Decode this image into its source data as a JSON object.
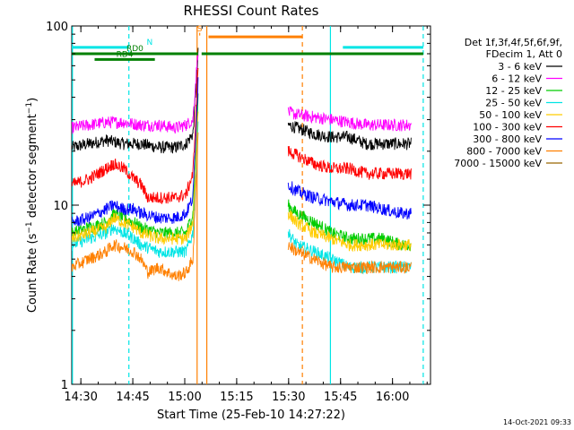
{
  "chart_data": {
    "type": "line",
    "title": "RHESSI Count Rates",
    "xlabel": "Start Time (25-Feb-10 14:27:22)",
    "ylabel": "Count Rate (s⁻¹ detector segment⁻¹)",
    "ylabel_main": "Count Rate (s",
    "ylabel_sup1": "−1",
    "ylabel_mid": " detector segment",
    "ylabel_sup2": "−1",
    "ylabel_end": ")",
    "x_axis_unit": "minutes after 14:27:22",
    "xlim_minutes": [
      0,
      103.6
    ],
    "ylim": [
      1,
      100
    ],
    "y_scale": "log",
    "x_ticks": [
      {
        "label": "14:30",
        "min": 2.63
      },
      {
        "label": "14:45",
        "min": 17.63
      },
      {
        "label": "15:00",
        "min": 32.63
      },
      {
        "label": "15:15",
        "min": 47.63
      },
      {
        "label": "15:30",
        "min": 62.63
      },
      {
        "label": "15:45",
        "min": 77.63
      },
      {
        "label": "16:00",
        "min": 92.63
      }
    ],
    "y_ticks": [
      {
        "label": "1",
        "value": 1
      },
      {
        "label": "10",
        "value": 10
      },
      {
        "label": "100",
        "value": 100
      }
    ],
    "legend_header": [
      "Det 1f,3f,4f,5f,6f,9f,",
      "FDecim 1, Att 0"
    ],
    "legend_placement": "right",
    "series": [
      {
        "name": "3 - 6 keV",
        "color": "#000000",
        "values": [
          [
            0,
            21
          ],
          [
            5,
            22
          ],
          [
            10,
            23
          ],
          [
            15,
            22
          ],
          [
            20,
            22
          ],
          [
            25,
            21
          ],
          [
            30,
            21
          ],
          [
            33,
            22
          ],
          [
            35,
            25
          ],
          [
            36.5,
            70
          ],
          [
            37.1,
            null
          ],
          [
            62,
            null
          ],
          [
            62.5,
            28
          ],
          [
            65,
            27
          ],
          [
            70,
            25
          ],
          [
            75,
            24
          ],
          [
            80,
            24
          ],
          [
            85,
            22
          ],
          [
            90,
            22
          ],
          [
            95,
            22
          ],
          [
            98,
            22
          ]
        ]
      },
      {
        "name": "6 - 12 keV",
        "color": "#ff00ff",
        "values": [
          [
            0,
            27
          ],
          [
            5,
            28
          ],
          [
            10,
            29
          ],
          [
            15,
            29
          ],
          [
            20,
            28
          ],
          [
            25,
            28
          ],
          [
            30,
            27
          ],
          [
            33,
            28
          ],
          [
            35,
            30
          ],
          [
            36.5,
            75
          ],
          [
            37.1,
            null
          ],
          [
            62,
            null
          ],
          [
            62.5,
            33
          ],
          [
            65,
            32
          ],
          [
            70,
            31
          ],
          [
            75,
            30
          ],
          [
            80,
            29
          ],
          [
            85,
            28
          ],
          [
            90,
            28
          ],
          [
            95,
            28
          ],
          [
            98,
            28
          ]
        ]
      },
      {
        "name": "12 - 25 keV",
        "color": "#00cc00",
        "values": [
          [
            0,
            7
          ],
          [
            5,
            7.5
          ],
          [
            10,
            8
          ],
          [
            12,
            9
          ],
          [
            15,
            8.5
          ],
          [
            18,
            8
          ],
          [
            20,
            7.5
          ],
          [
            25,
            7
          ],
          [
            30,
            7
          ],
          [
            33,
            7
          ],
          [
            35,
            9
          ],
          [
            36.5,
            40
          ],
          [
            37.1,
            null
          ],
          [
            62,
            null
          ],
          [
            62.5,
            10
          ],
          [
            65,
            9
          ],
          [
            70,
            8
          ],
          [
            75,
            7
          ],
          [
            80,
            6.5
          ],
          [
            85,
            6.5
          ],
          [
            90,
            6.5
          ],
          [
            95,
            6
          ],
          [
            98,
            6
          ]
        ]
      },
      {
        "name": "25 - 50 keV",
        "color": "#00e5e5",
        "values": [
          [
            0,
            6
          ],
          [
            5,
            6.5
          ],
          [
            10,
            7
          ],
          [
            12,
            7.5
          ],
          [
            15,
            7
          ],
          [
            18,
            6.5
          ],
          [
            20,
            6
          ],
          [
            25,
            5.5
          ],
          [
            30,
            5.5
          ],
          [
            33,
            5.5
          ],
          [
            35,
            7
          ],
          [
            36.5,
            30
          ],
          [
            37.1,
            null
          ],
          [
            62,
            null
          ],
          [
            62.5,
            7
          ],
          [
            65,
            6
          ],
          [
            70,
            5.5
          ],
          [
            75,
            5
          ],
          [
            80,
            4.5
          ],
          [
            85,
            4.5
          ],
          [
            90,
            4.5
          ],
          [
            95,
            4.5
          ],
          [
            98,
            4.5
          ]
        ]
      },
      {
        "name": "50 - 100 keV",
        "color": "#ffcc00",
        "values": [
          [
            0,
            6.5
          ],
          [
            5,
            7
          ],
          [
            10,
            7.5
          ],
          [
            12,
            8.5
          ],
          [
            15,
            8
          ],
          [
            18,
            7.5
          ],
          [
            20,
            7
          ],
          [
            25,
            6.5
          ],
          [
            30,
            6.5
          ],
          [
            33,
            6.5
          ],
          [
            35,
            8
          ],
          [
            36.5,
            35
          ],
          [
            37.1,
            null
          ],
          [
            62,
            null
          ],
          [
            62.5,
            9
          ],
          [
            65,
            8
          ],
          [
            70,
            7
          ],
          [
            75,
            6.5
          ],
          [
            80,
            6
          ],
          [
            85,
            6
          ],
          [
            90,
            6
          ],
          [
            95,
            6
          ],
          [
            98,
            6
          ]
        ]
      },
      {
        "name": "100 - 300 keV",
        "color": "#ff0000",
        "values": [
          [
            0,
            13
          ],
          [
            5,
            14
          ],
          [
            10,
            16
          ],
          [
            12,
            17
          ],
          [
            15,
            16
          ],
          [
            18,
            14
          ],
          [
            20,
            13
          ],
          [
            22,
            11
          ],
          [
            25,
            11
          ],
          [
            30,
            11
          ],
          [
            33,
            11.5
          ],
          [
            35,
            15
          ],
          [
            36.5,
            60
          ],
          [
            37.1,
            null
          ],
          [
            62,
            null
          ],
          [
            62.5,
            20
          ],
          [
            65,
            19
          ],
          [
            70,
            17
          ],
          [
            75,
            16
          ],
          [
            80,
            16
          ],
          [
            85,
            15
          ],
          [
            90,
            15
          ],
          [
            95,
            15
          ],
          [
            98,
            15
          ]
        ]
      },
      {
        "name": "300 - 800 keV",
        "color": "#0000ff",
        "values": [
          [
            0,
            8
          ],
          [
            5,
            8.5
          ],
          [
            10,
            9.5
          ],
          [
            12,
            10
          ],
          [
            15,
            9.5
          ],
          [
            18,
            9.5
          ],
          [
            20,
            9
          ],
          [
            25,
            8.5
          ],
          [
            30,
            8.5
          ],
          [
            33,
            9
          ],
          [
            35,
            11
          ],
          [
            36.5,
            50
          ],
          [
            37.1,
            null
          ],
          [
            62,
            null
          ],
          [
            62.5,
            13
          ],
          [
            65,
            12
          ],
          [
            70,
            11
          ],
          [
            75,
            10.5
          ],
          [
            80,
            10
          ],
          [
            85,
            10
          ],
          [
            90,
            9.5
          ],
          [
            95,
            9
          ],
          [
            98,
            9
          ]
        ]
      },
      {
        "name": "800 - 7000 keV",
        "color": "#ff8000",
        "values": [
          [
            0,
            4.5
          ],
          [
            5,
            5
          ],
          [
            10,
            5.5
          ],
          [
            12,
            6
          ],
          [
            15,
            5.8
          ],
          [
            18,
            5.5
          ],
          [
            20,
            5
          ],
          [
            22,
            4.2
          ],
          [
            25,
            4.5
          ],
          [
            30,
            4
          ],
          [
            33,
            4.2
          ],
          [
            35,
            5
          ],
          [
            36.5,
            25
          ],
          [
            37.1,
            null
          ],
          [
            62,
            null
          ],
          [
            62.5,
            6
          ],
          [
            65,
            5.5
          ],
          [
            70,
            5
          ],
          [
            75,
            4.5
          ],
          [
            80,
            4.5
          ],
          [
            85,
            4.5
          ],
          [
            90,
            4.5
          ],
          [
            95,
            4.5
          ],
          [
            98,
            4.5
          ]
        ]
      },
      {
        "name": "7000 - 15000 keV",
        "color": "#996600",
        "values": []
      }
    ],
    "attenuator_flags": [
      {
        "label": "N",
        "color": "#00e5e5",
        "y": 76,
        "x_start": 0,
        "x_end": 16.5
      },
      {
        "label": "RD0",
        "color": "#008000",
        "y": 70,
        "x_start": 0,
        "x_end": 36.5
      },
      {
        "label": "RD4",
        "color": "#008000",
        "y": 65,
        "x_start": 6.6,
        "x_end": 24
      },
      {
        "label": "",
        "color": "#008000",
        "y": 70,
        "x_start": 37.5,
        "x_end": 101.5
      },
      {
        "label": "",
        "color": "#00e5e5",
        "y": 76,
        "x_start": 78.3,
        "x_end": 101.5
      },
      {
        "label": "",
        "color": "#ff8000",
        "y": 87,
        "x_start": 39.5,
        "x_end": 66.6
      },
      {
        "label": "S",
        "color": "#ff8000",
        "y": 90,
        "x_start": 36.8,
        "x_end": 37.1
      }
    ],
    "vlines": [
      {
        "x": 0.2,
        "color": "#00e5e5",
        "style": "solid"
      },
      {
        "x": 16.5,
        "color": "#00e5e5",
        "style": "dashed"
      },
      {
        "x": 36.2,
        "color": "#ff8000",
        "style": "solid"
      },
      {
        "x": 39.0,
        "color": "#ff8000",
        "style": "solid"
      },
      {
        "x": 66.6,
        "color": "#ff8000",
        "style": "dashed"
      },
      {
        "x": 74.7,
        "color": "#00e5e5",
        "style": "solid"
      },
      {
        "x": 101.5,
        "color": "#00e5e5",
        "style": "dashed"
      }
    ],
    "grid": false
  },
  "footer_timestamp": "14-Oct-2021 09:33"
}
